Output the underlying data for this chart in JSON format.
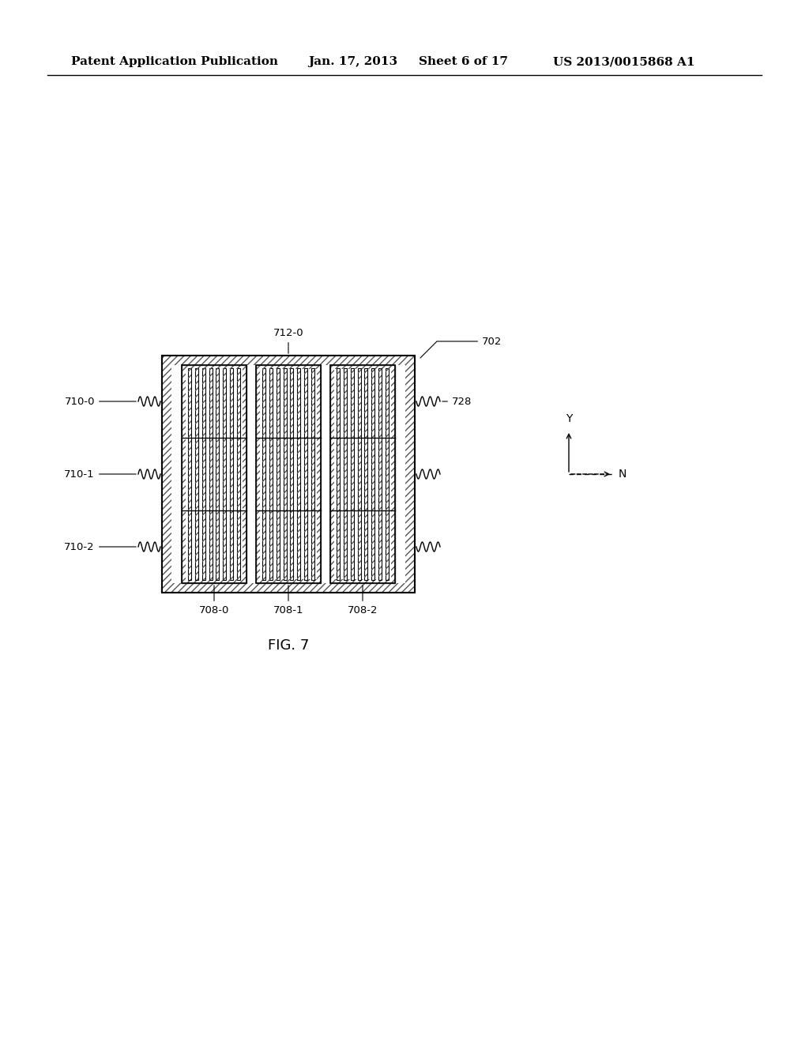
{
  "bg_color": "#ffffff",
  "header_text": "Patent Application Publication",
  "header_date": "Jan. 17, 2013",
  "header_sheet": "Sheet 6 of 17",
  "header_patent": "US 2013/0015868 A1",
  "fig_label": "FIG. 7",
  "label_702": "702",
  "label_712": "712-0",
  "label_728": "728",
  "label_710_0": "710-0",
  "label_710_1": "710-1",
  "label_710_2": "710-2",
  "label_708_0": "708-0",
  "label_708_1": "708-1",
  "label_708_2": "708-2",
  "label_Y": "Y",
  "label_N": "N",
  "hatch_color": "#555555",
  "line_color": "#000000",
  "dashed_color": "#888888"
}
